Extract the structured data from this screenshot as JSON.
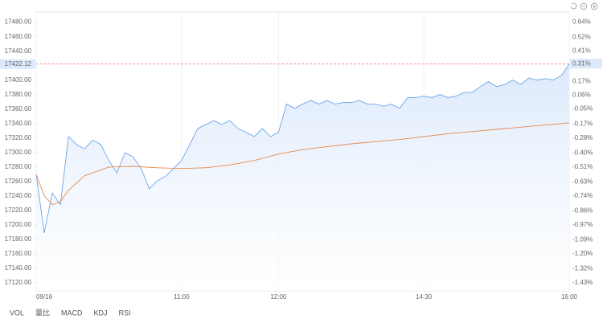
{
  "chart_data": {
    "type": "line",
    "x": [
      0,
      5,
      10,
      15,
      20,
      25,
      30,
      35,
      40,
      45,
      50,
      55,
      60,
      65,
      70,
      75,
      80,
      85,
      90,
      95,
      100,
      105,
      110,
      115,
      120,
      125,
      130,
      135,
      140,
      145,
      150,
      155,
      160,
      165,
      170,
      175,
      180,
      185,
      190,
      195,
      200,
      205,
      210,
      215,
      220,
      225,
      230,
      235,
      240,
      245,
      250,
      255,
      260,
      265,
      270,
      275,
      280,
      285,
      290,
      295,
      300,
      305,
      310,
      315,
      320,
      325,
      330
    ],
    "series": [
      {
        "name": "Price",
        "color": "#5b9bea",
        "fill": "#dce9fb",
        "values": [
          17270,
          17189,
          17244,
          17228,
          17322,
          17311,
          17305,
          17317,
          17311,
          17289,
          17272,
          17300,
          17294,
          17278,
          17250,
          17261,
          17267,
          17278,
          17289,
          17311,
          17333,
          17339,
          17344,
          17339,
          17344,
          17333,
          17328,
          17322,
          17333,
          17322,
          17328,
          17367,
          17361,
          17367,
          17372,
          17367,
          17372,
          17367,
          17369,
          17369,
          17372,
          17367,
          17367,
          17364,
          17367,
          17361,
          17376,
          17376,
          17378,
          17376,
          17380,
          17376,
          17378,
          17383,
          17383,
          17391,
          17398,
          17391,
          17394,
          17400,
          17394,
          17403,
          17400,
          17402,
          17400,
          17406,
          17422.12
        ]
      },
      {
        "name": "Average",
        "color": "#e8884a",
        "x": [
          0,
          5,
          10,
          15,
          20,
          30,
          45,
          60,
          75,
          90,
          105,
          120,
          135,
          150,
          165,
          180,
          195,
          210,
          225,
          240,
          255,
          270,
          285,
          300,
          315,
          330
        ],
        "values": [
          17270,
          17240,
          17228,
          17232,
          17248,
          17268,
          17280,
          17281,
          17279,
          17278,
          17279,
          17283,
          17289,
          17298,
          17304,
          17308,
          17312,
          17315,
          17318,
          17322,
          17326,
          17329,
          17332,
          17335,
          17338,
          17341
        ]
      }
    ],
    "xlim": [
      0,
      330
    ],
    "xticks": [
      {
        "value": 0,
        "label": "09/16"
      },
      {
        "value": 90,
        "label": "11:00"
      },
      {
        "value": 150,
        "label": "12:00"
      },
      {
        "value": 240,
        "label": "14:30"
      },
      {
        "value": 330,
        "label": "16:00"
      }
    ],
    "ylim": [
      17109,
      17494
    ],
    "yticks": [
      {
        "value": 17480,
        "label": "17480.00"
      },
      {
        "value": 17460,
        "label": "17460.00"
      },
      {
        "value": 17440,
        "label": "17440.00"
      },
      {
        "value": 17400,
        "label": "17400.00"
      },
      {
        "value": 17380,
        "label": "17380.00"
      },
      {
        "value": 17360,
        "label": "17360.00"
      },
      {
        "value": 17340,
        "label": "17340.00"
      },
      {
        "value": 17320,
        "label": "17320.00"
      },
      {
        "value": 17300,
        "label": "17300.00"
      },
      {
        "value": 17280,
        "label": "17280.00"
      },
      {
        "value": 17260,
        "label": "17260.00"
      },
      {
        "value": 17240,
        "label": "17240.00"
      },
      {
        "value": 17220,
        "label": "17220.00"
      },
      {
        "value": 17200,
        "label": "17200.00"
      },
      {
        "value": 17180,
        "label": "17180.00"
      },
      {
        "value": 17160,
        "label": "17160.00"
      },
      {
        "value": 17140,
        "label": "17140.00"
      },
      {
        "value": 17120,
        "label": "17120.00"
      }
    ],
    "y2lim": [
      -1.495,
      0.72
    ],
    "y2ticks": [
      {
        "value": 0.64,
        "label": "0.64%"
      },
      {
        "value": 0.52,
        "label": "0.52%"
      },
      {
        "value": 0.41,
        "label": "0.41%"
      },
      {
        "value": 0.17,
        "label": "0.17%"
      },
      {
        "value": 0.06,
        "label": "0.06%"
      },
      {
        "value": -0.05,
        "label": "-0.05%"
      },
      {
        "value": -0.17,
        "label": "-0.17%"
      },
      {
        "value": -0.28,
        "label": "-0.28%"
      },
      {
        "value": -0.4,
        "label": "-0.40%"
      },
      {
        "value": -0.51,
        "label": "-0.51%"
      },
      {
        "value": -0.63,
        "label": "-0.63%"
      },
      {
        "value": -0.74,
        "label": "-0.74%"
      },
      {
        "value": -0.86,
        "label": "-0.86%"
      },
      {
        "value": -0.97,
        "label": "-0.97%"
      },
      {
        "value": -1.09,
        "label": "-1.09%"
      },
      {
        "value": -1.2,
        "label": "-1.20%"
      },
      {
        "value": -1.32,
        "label": "-1.32%"
      },
      {
        "value": -1.43,
        "label": "-1.43%"
      }
    ],
    "last_price": 17422.12,
    "last_change": {
      "value": 0.31,
      "label": "0.31%"
    },
    "up_color": "#e03c3c",
    "down_color": "#1a9e55",
    "tabs": [
      "VOL",
      "量比",
      "MACD",
      "KDJ",
      "RSI"
    ]
  }
}
